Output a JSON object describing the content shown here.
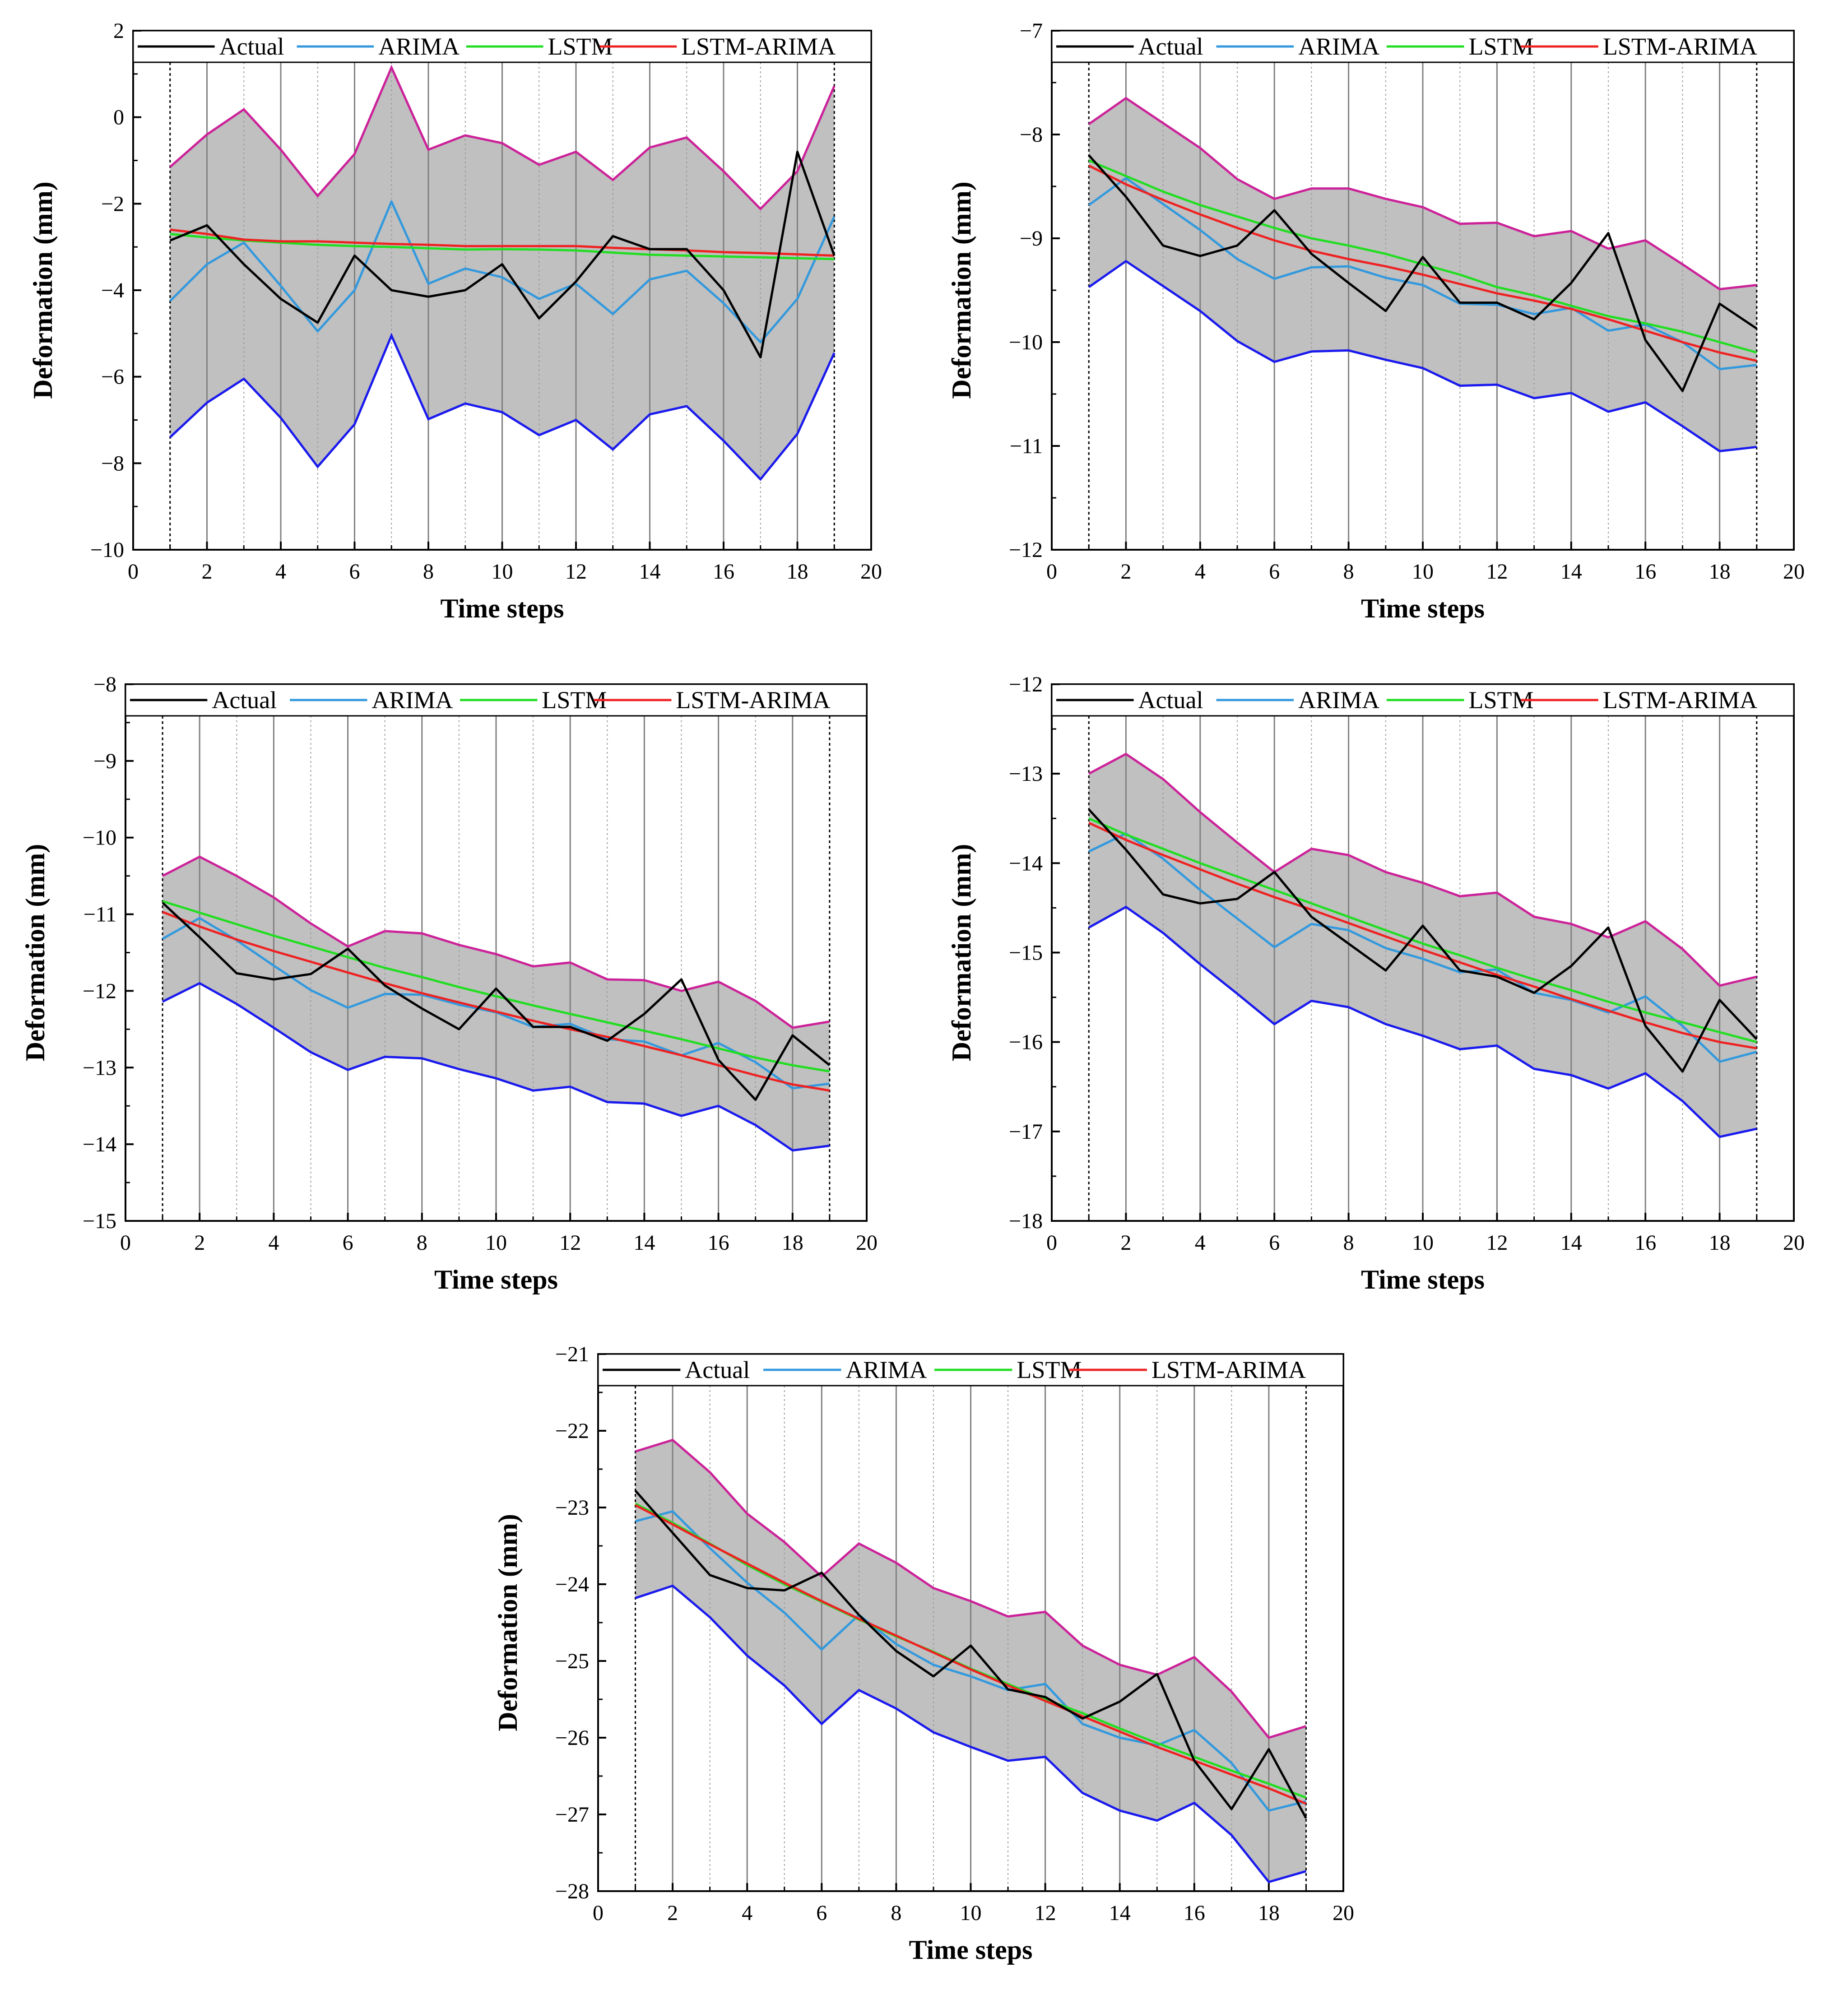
{
  "chart_data": [
    {
      "type": "line",
      "title": "",
      "xlabel": "Time steps",
      "ylabel": "Deformation (mm)",
      "xlim": [
        0,
        20
      ],
      "ylim": [
        -10,
        2
      ],
      "xticks": [
        0,
        2,
        4,
        6,
        8,
        10,
        12,
        14,
        16,
        18,
        20
      ],
      "yticks": [
        -10,
        -8,
        -6,
        -4,
        -2,
        0,
        2
      ],
      "legend": [
        "Actual",
        "ARIMA",
        "LSTM",
        "LSTM-ARIMA"
      ],
      "x": [
        1,
        2,
        3,
        4,
        5,
        6,
        7,
        8,
        9,
        10,
        11,
        12,
        13,
        14,
        15,
        16,
        17,
        18,
        19
      ],
      "series": [
        {
          "name": "Actual",
          "color": "#000000",
          "values": [
            -2.85,
            -2.5,
            -3.4,
            -4.2,
            -4.75,
            -3.2,
            -4.0,
            -4.15,
            -4.0,
            -3.4,
            -4.65,
            -3.8,
            -2.75,
            -3.05,
            -3.05,
            -4.0,
            -5.55,
            -0.8,
            -3.2
          ]
        },
        {
          "name": "ARIMA",
          "color": "#3399dd",
          "values": [
            -4.25,
            -3.4,
            -2.9,
            -3.9,
            -4.95,
            -4.0,
            -1.95,
            -3.85,
            -3.5,
            -3.7,
            -4.2,
            -3.85,
            -4.55,
            -3.75,
            -3.55,
            -4.3,
            -5.2,
            -4.2,
            -2.3
          ]
        },
        {
          "name": "LSTM",
          "color": "#22dd22",
          "values": [
            -2.7,
            -2.78,
            -2.85,
            -2.9,
            -2.95,
            -2.98,
            -3.0,
            -3.03,
            -3.06,
            -3.05,
            -3.06,
            -3.08,
            -3.13,
            -3.18,
            -3.2,
            -3.22,
            -3.24,
            -3.26,
            -3.28
          ]
        },
        {
          "name": "LSTM-ARIMA",
          "color": "#ee2222",
          "values": [
            -2.6,
            -2.7,
            -2.83,
            -2.87,
            -2.87,
            -2.9,
            -2.93,
            -2.95,
            -2.98,
            -2.98,
            -2.98,
            -2.98,
            -3.02,
            -3.05,
            -3.08,
            -3.12,
            -3.14,
            -3.17,
            -3.2
          ]
        }
      ],
      "band": {
        "upper": [
          -1.15,
          -0.4,
          0.18,
          -0.75,
          -1.82,
          -0.85,
          1.15,
          -0.75,
          -0.42,
          -0.6,
          -1.1,
          -0.8,
          -1.45,
          -0.7,
          -0.47,
          -1.25,
          -2.12,
          -1.25,
          0.72
        ],
        "lower": [
          -7.4,
          -6.6,
          -6.05,
          -6.95,
          -8.08,
          -7.1,
          -5.05,
          -6.98,
          -6.62,
          -6.82,
          -7.35,
          -7.0,
          -7.68,
          -6.87,
          -6.68,
          -7.48,
          -8.37,
          -7.32,
          -5.45
        ],
        "upper_color": "#cc2299",
        "lower_color": "#1a1aee",
        "fill_color": "#c0c0c0"
      }
    },
    {
      "type": "line",
      "title": "",
      "xlabel": "Time steps",
      "ylabel": "Deformation (mm)",
      "xlim": [
        0,
        20
      ],
      "ylim": [
        -12,
        -7
      ],
      "xticks": [
        0,
        2,
        4,
        6,
        8,
        10,
        12,
        14,
        16,
        18,
        20
      ],
      "yticks": [
        -12,
        -11,
        -10,
        -9,
        -8,
        -7
      ],
      "legend": [
        "Actual",
        "ARIMA",
        "LSTM",
        "LSTM-ARIMA"
      ],
      "x": [
        1,
        2,
        3,
        4,
        5,
        6,
        7,
        8,
        9,
        10,
        11,
        12,
        13,
        14,
        15,
        16,
        17,
        18,
        19
      ],
      "series": [
        {
          "name": "Actual",
          "color": "#000000",
          "values": [
            -8.2,
            -8.6,
            -9.07,
            -9.17,
            -9.07,
            -8.73,
            -9.15,
            -9.43,
            -9.7,
            -9.18,
            -9.62,
            -9.62,
            -9.78,
            -9.43,
            -8.95,
            -9.98,
            -10.47,
            -9.63,
            -9.87
          ]
        },
        {
          "name": "ARIMA",
          "color": "#3399dd",
          "values": [
            -8.68,
            -8.42,
            -8.67,
            -8.92,
            -9.2,
            -9.39,
            -9.28,
            -9.27,
            -9.38,
            -9.45,
            -9.63,
            -9.64,
            -9.73,
            -9.67,
            -9.89,
            -9.83,
            -10.0,
            -10.26,
            -10.22
          ]
        },
        {
          "name": "LSTM",
          "color": "#22dd22",
          "values": [
            -8.25,
            -8.4,
            -8.55,
            -8.68,
            -8.79,
            -8.9,
            -9.0,
            -9.07,
            -9.15,
            -9.25,
            -9.35,
            -9.47,
            -9.55,
            -9.65,
            -9.75,
            -9.82,
            -9.9,
            -10.0,
            -10.1
          ]
        },
        {
          "name": "LSTM-ARIMA",
          "color": "#ee2222",
          "values": [
            -8.3,
            -8.48,
            -8.63,
            -8.77,
            -8.9,
            -9.02,
            -9.12,
            -9.2,
            -9.27,
            -9.35,
            -9.44,
            -9.53,
            -9.6,
            -9.68,
            -9.78,
            -9.89,
            -10.0,
            -10.1,
            -10.18
          ]
        }
      ],
      "band": {
        "upper": [
          -7.9,
          -7.65,
          -7.89,
          -8.13,
          -8.43,
          -8.62,
          -8.52,
          -8.52,
          -8.62,
          -8.7,
          -8.86,
          -8.85,
          -8.98,
          -8.93,
          -9.1,
          -9.02,
          -9.25,
          -9.49,
          -9.45
        ],
        "lower": [
          -9.47,
          -9.22,
          -9.46,
          -9.7,
          -9.99,
          -10.19,
          -10.09,
          -10.08,
          -10.17,
          -10.25,
          -10.42,
          -10.41,
          -10.54,
          -10.49,
          -10.67,
          -10.58,
          -10.81,
          -11.05,
          -11.01
        ],
        "upper_color": "#cc2299",
        "lower_color": "#1a1aee",
        "fill_color": "#c0c0c0"
      }
    },
    {
      "type": "line",
      "title": "",
      "xlabel": "Time steps",
      "ylabel": "Deformation (mm)",
      "xlim": [
        0,
        20
      ],
      "ylim": [
        -15,
        -8
      ],
      "xticks": [
        0,
        2,
        4,
        6,
        8,
        10,
        12,
        14,
        16,
        18,
        20
      ],
      "yticks": [
        -15,
        -14,
        -13,
        -12,
        -11,
        -10,
        -9,
        -8
      ],
      "legend": [
        "Actual",
        "ARIMA",
        "LSTM",
        "LSTM-ARIMA"
      ],
      "x": [
        1,
        2,
        3,
        4,
        5,
        6,
        7,
        8,
        9,
        10,
        11,
        12,
        13,
        14,
        15,
        16,
        17,
        18,
        19
      ],
      "series": [
        {
          "name": "Actual",
          "color": "#000000",
          "values": [
            -10.85,
            -11.3,
            -11.77,
            -11.85,
            -11.78,
            -11.45,
            -11.93,
            -12.23,
            -12.5,
            -11.97,
            -12.47,
            -12.47,
            -12.65,
            -12.3,
            -11.85,
            -12.9,
            -13.42,
            -12.58,
            -12.97
          ]
        },
        {
          "name": "ARIMA",
          "color": "#3399dd",
          "values": [
            -11.32,
            -11.05,
            -11.34,
            -11.67,
            -11.99,
            -12.22,
            -12.04,
            -12.05,
            -12.18,
            -12.28,
            -12.47,
            -12.43,
            -12.63,
            -12.66,
            -12.84,
            -12.68,
            -12.93,
            -13.27,
            -13.21
          ]
        },
        {
          "name": "LSTM",
          "color": "#22dd22",
          "values": [
            -10.83,
            -10.98,
            -11.13,
            -11.28,
            -11.42,
            -11.56,
            -11.7,
            -11.82,
            -11.95,
            -12.07,
            -12.19,
            -12.3,
            -12.41,
            -12.52,
            -12.63,
            -12.75,
            -12.87,
            -12.97,
            -13.05
          ]
        },
        {
          "name": "LSTM-ARIMA",
          "color": "#ee2222",
          "values": [
            -10.97,
            -11.16,
            -11.33,
            -11.48,
            -11.62,
            -11.76,
            -11.9,
            -12.03,
            -12.15,
            -12.27,
            -12.39,
            -12.5,
            -12.6,
            -12.72,
            -12.84,
            -12.97,
            -13.1,
            -13.22,
            -13.3
          ]
        }
      ],
      "band": {
        "upper": [
          -10.5,
          -10.25,
          -10.5,
          -10.78,
          -11.12,
          -11.42,
          -11.22,
          -11.25,
          -11.4,
          -11.52,
          -11.68,
          -11.63,
          -11.85,
          -11.86,
          -12.0,
          -11.88,
          -12.13,
          -12.48,
          -12.4
        ],
        "lower": [
          -12.14,
          -11.9,
          -12.17,
          -12.48,
          -12.8,
          -13.03,
          -12.86,
          -12.88,
          -13.02,
          -13.14,
          -13.3,
          -13.25,
          -13.45,
          -13.47,
          -13.63,
          -13.5,
          -13.75,
          -14.08,
          -14.02
        ],
        "upper_color": "#cc2299",
        "lower_color": "#1a1aee",
        "fill_color": "#c0c0c0"
      }
    },
    {
      "type": "line",
      "title": "",
      "xlabel": "Time steps",
      "ylabel": "Deformation (mm)",
      "xlim": [
        0,
        20
      ],
      "ylim": [
        -18,
        -12
      ],
      "xticks": [
        0,
        2,
        4,
        6,
        8,
        10,
        12,
        14,
        16,
        18,
        20
      ],
      "yticks": [
        -18,
        -17,
        -16,
        -15,
        -14,
        -13,
        -12
      ],
      "legend": [
        "Actual",
        "ARIMA",
        "LSTM",
        "LSTM-ARIMA"
      ],
      "x": [
        1,
        2,
        3,
        4,
        5,
        6,
        7,
        8,
        9,
        10,
        11,
        12,
        13,
        14,
        15,
        16,
        17,
        18,
        19
      ],
      "series": [
        {
          "name": "Actual",
          "color": "#000000",
          "values": [
            -13.4,
            -13.85,
            -14.35,
            -14.45,
            -14.4,
            -14.1,
            -14.6,
            -14.9,
            -15.2,
            -14.7,
            -15.2,
            -15.27,
            -15.45,
            -15.15,
            -14.72,
            -15.82,
            -16.33,
            -15.53,
            -15.97
          ]
        },
        {
          "name": "ARIMA",
          "color": "#3399dd",
          "values": [
            -13.87,
            -13.67,
            -13.95,
            -14.3,
            -14.62,
            -14.94,
            -14.68,
            -14.75,
            -14.95,
            -15.07,
            -15.22,
            -15.19,
            -15.45,
            -15.53,
            -15.67,
            -15.49,
            -15.82,
            -16.22,
            -16.11
          ]
        },
        {
          "name": "LSTM",
          "color": "#22dd22",
          "values": [
            -13.5,
            -13.68,
            -13.84,
            -14.0,
            -14.15,
            -14.3,
            -14.45,
            -14.6,
            -14.75,
            -14.9,
            -15.03,
            -15.17,
            -15.3,
            -15.42,
            -15.55,
            -15.67,
            -15.78,
            -15.89,
            -16.0
          ]
        },
        {
          "name": "LSTM-ARIMA",
          "color": "#ee2222",
          "values": [
            -13.55,
            -13.74,
            -13.91,
            -14.07,
            -14.23,
            -14.38,
            -14.52,
            -14.67,
            -14.82,
            -14.97,
            -15.11,
            -15.25,
            -15.38,
            -15.52,
            -15.65,
            -15.78,
            -15.9,
            -16.0,
            -16.07
          ]
        }
      ],
      "band": {
        "upper": [
          -13.0,
          -12.78,
          -13.06,
          -13.43,
          -13.77,
          -14.1,
          -13.84,
          -13.91,
          -14.1,
          -14.22,
          -14.37,
          -14.33,
          -14.6,
          -14.68,
          -14.83,
          -14.65,
          -14.96,
          -15.37,
          -15.27
        ],
        "lower": [
          -14.72,
          -14.49,
          -14.78,
          -15.13,
          -15.46,
          -15.8,
          -15.54,
          -15.61,
          -15.8,
          -15.93,
          -16.08,
          -16.04,
          -16.3,
          -16.37,
          -16.52,
          -16.35,
          -16.66,
          -17.06,
          -16.97
        ],
        "upper_color": "#cc2299",
        "lower_color": "#1a1aee",
        "fill_color": "#c0c0c0"
      }
    },
    {
      "type": "line",
      "title": "",
      "xlabel": "Time steps",
      "ylabel": "Deformation (mm)",
      "xlim": [
        0,
        20
      ],
      "ylim": [
        -28,
        -21
      ],
      "xticks": [
        0,
        2,
        4,
        6,
        8,
        10,
        12,
        14,
        16,
        18,
        20
      ],
      "yticks": [
        -28,
        -27,
        -26,
        -25,
        -24,
        -23,
        -22,
        -21
      ],
      "legend": [
        "Actual",
        "ARIMA",
        "LSTM",
        "LSTM-ARIMA"
      ],
      "x": [
        1,
        2,
        3,
        4,
        5,
        6,
        7,
        8,
        9,
        10,
        11,
        12,
        13,
        14,
        15,
        16,
        17,
        18,
        19
      ],
      "series": [
        {
          "name": "Actual",
          "color": "#000000",
          "values": [
            -22.78,
            -23.33,
            -23.88,
            -24.05,
            -24.08,
            -23.85,
            -24.4,
            -24.87,
            -25.2,
            -24.8,
            -25.37,
            -25.47,
            -25.75,
            -25.53,
            -25.17,
            -26.3,
            -26.93,
            -26.15,
            -27.05
          ]
        },
        {
          "name": "ARIMA",
          "color": "#3399dd",
          "values": [
            -23.18,
            -23.05,
            -23.53,
            -23.98,
            -24.37,
            -24.85,
            -24.4,
            -24.78,
            -25.05,
            -25.2,
            -25.38,
            -25.3,
            -25.82,
            -26.0,
            -26.1,
            -25.9,
            -26.33,
            -26.95,
            -26.83
          ]
        },
        {
          "name": "LSTM",
          "color": "#22dd22",
          "values": [
            -22.95,
            -23.2,
            -23.47,
            -23.75,
            -24.0,
            -24.23,
            -24.46,
            -24.68,
            -24.88,
            -25.1,
            -25.3,
            -25.5,
            -25.68,
            -25.88,
            -26.07,
            -26.25,
            -26.43,
            -26.6,
            -26.78
          ]
        },
        {
          "name": "LSTM-ARIMA",
          "color": "#ee2222",
          "values": [
            -22.97,
            -23.22,
            -23.48,
            -23.73,
            -23.98,
            -24.22,
            -24.45,
            -24.67,
            -24.89,
            -25.11,
            -25.32,
            -25.52,
            -25.72,
            -25.92,
            -26.12,
            -26.3,
            -26.48,
            -26.66,
            -26.86
          ]
        }
      ],
      "band": {
        "upper": [
          -22.27,
          -22.12,
          -22.54,
          -23.08,
          -23.45,
          -23.9,
          -23.47,
          -23.72,
          -24.05,
          -24.22,
          -24.42,
          -24.36,
          -24.8,
          -25.05,
          -25.18,
          -24.95,
          -25.4,
          -26.0,
          -25.85
        ],
        "lower": [
          -24.18,
          -24.02,
          -24.43,
          -24.93,
          -25.32,
          -25.82,
          -25.38,
          -25.62,
          -25.93,
          -26.12,
          -26.3,
          -26.25,
          -26.72,
          -26.95,
          -27.08,
          -26.85,
          -27.27,
          -27.88,
          -27.74
        ],
        "upper_color": "#cc2299",
        "lower_color": "#1a1aee",
        "fill_color": "#c0c0c0"
      }
    }
  ]
}
